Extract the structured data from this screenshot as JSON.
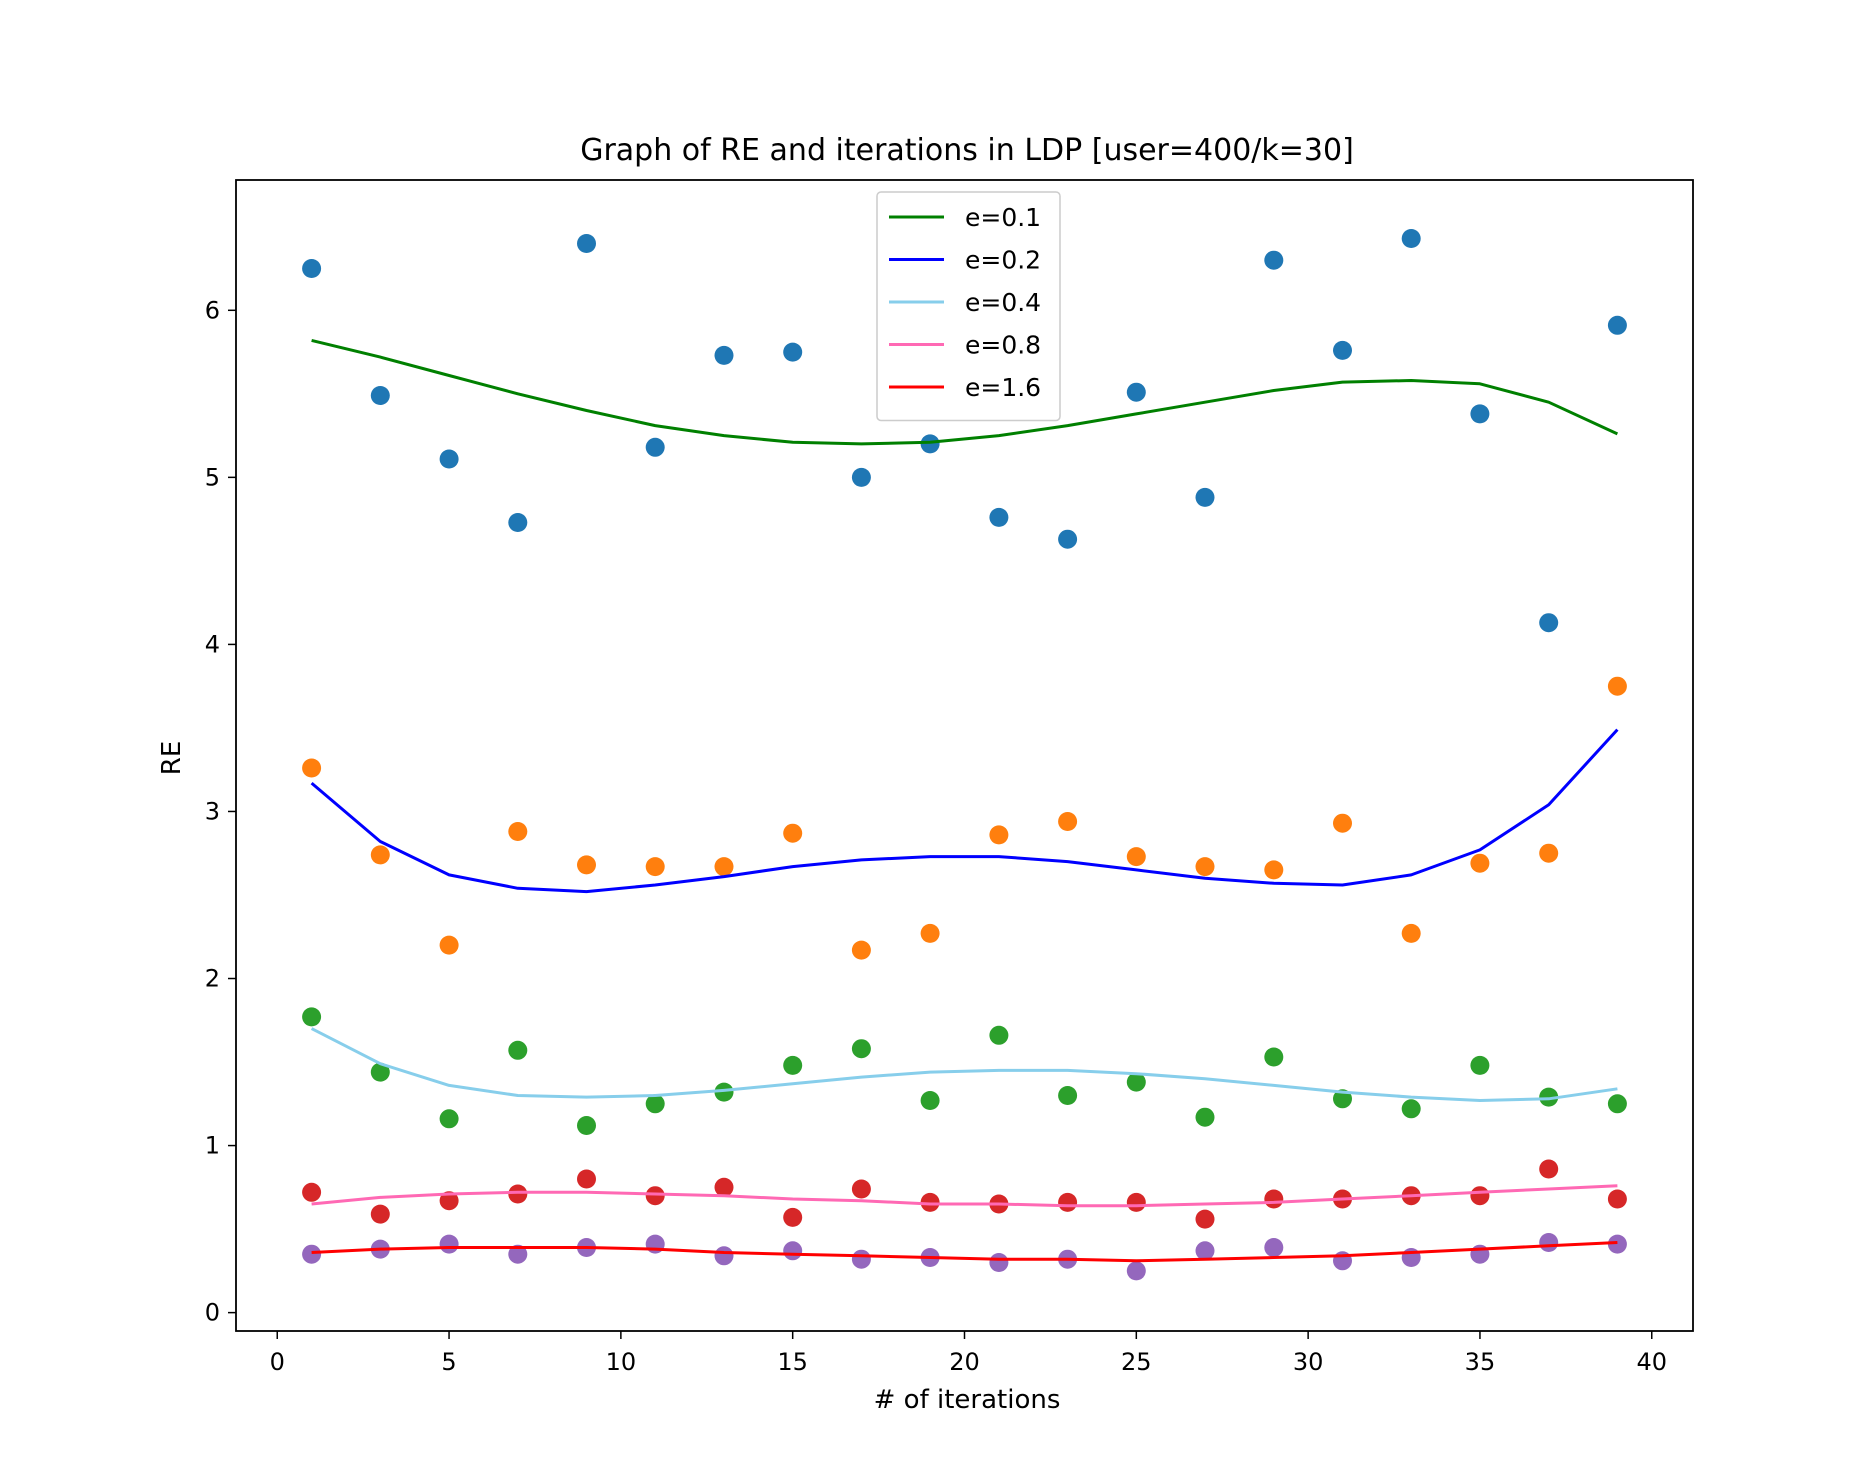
{
  "chart_data": {
    "type": "scatter",
    "title": "Graph of RE and iterations in LDP [user=400/k=30]",
    "xlabel": "# of iterations",
    "ylabel": "RE",
    "xlim": [
      -1.2,
      41.2
    ],
    "ylim": [
      -0.11,
      6.78
    ],
    "x_ticks": [
      0,
      5,
      10,
      15,
      20,
      25,
      30,
      35,
      40
    ],
    "y_ticks": [
      0,
      1,
      2,
      3,
      4,
      5,
      6
    ],
    "legend_position": "top-center",
    "x": [
      1,
      3,
      5,
      7,
      9,
      11,
      13,
      15,
      17,
      19,
      21,
      23,
      25,
      27,
      29,
      31,
      33,
      35,
      37,
      39
    ],
    "scatter_series": [
      {
        "color": "#1f77b4",
        "values": [
          6.25,
          5.49,
          5.11,
          4.73,
          6.4,
          5.18,
          5.73,
          5.75,
          5.0,
          5.2,
          4.76,
          4.63,
          5.51,
          4.88,
          6.3,
          5.76,
          6.43,
          5.38,
          4.13,
          5.91
        ]
      },
      {
        "color": "#ff7f0e",
        "values": [
          3.26,
          2.74,
          2.2,
          2.88,
          2.68,
          2.67,
          2.67,
          2.87,
          2.17,
          2.27,
          2.86,
          2.94,
          2.73,
          2.67,
          2.65,
          2.93,
          2.27,
          2.69,
          2.75,
          3.75
        ]
      },
      {
        "color": "#2ca02c",
        "values": [
          1.77,
          1.44,
          1.16,
          1.57,
          1.12,
          1.25,
          1.32,
          1.48,
          1.58,
          1.27,
          1.66,
          1.3,
          1.38,
          1.17,
          1.53,
          1.28,
          1.22,
          1.48,
          1.29,
          1.25
        ]
      },
      {
        "color": "#d62728",
        "values": [
          0.72,
          0.59,
          0.67,
          0.71,
          0.8,
          0.7,
          0.75,
          0.57,
          0.74,
          0.66,
          0.65,
          0.66,
          0.66,
          0.56,
          0.68,
          0.68,
          0.7,
          0.7,
          0.86,
          0.68
        ]
      },
      {
        "color": "#9467bd",
        "values": [
          0.35,
          0.38,
          0.41,
          0.35,
          0.39,
          0.41,
          0.34,
          0.37,
          0.32,
          0.33,
          0.3,
          0.32,
          0.25,
          0.37,
          0.39,
          0.31,
          0.33,
          0.35,
          0.42,
          0.41
        ]
      }
    ],
    "series": [
      {
        "name": "e=0.1",
        "color": "#008000",
        "values": [
          5.82,
          5.72,
          5.61,
          5.5,
          5.4,
          5.31,
          5.25,
          5.21,
          5.2,
          5.21,
          5.25,
          5.31,
          5.38,
          5.45,
          5.52,
          5.57,
          5.58,
          5.56,
          5.45,
          5.26
        ]
      },
      {
        "name": "e=0.2",
        "color": "#0000ff",
        "values": [
          3.17,
          2.82,
          2.62,
          2.54,
          2.52,
          2.56,
          2.61,
          2.67,
          2.71,
          2.73,
          2.73,
          2.7,
          2.65,
          2.6,
          2.57,
          2.56,
          2.62,
          2.77,
          3.04,
          3.49
        ]
      },
      {
        "name": "e=0.4",
        "color": "#87ceeb",
        "values": [
          1.7,
          1.49,
          1.36,
          1.3,
          1.29,
          1.3,
          1.33,
          1.37,
          1.41,
          1.44,
          1.45,
          1.45,
          1.43,
          1.4,
          1.36,
          1.32,
          1.29,
          1.27,
          1.28,
          1.34
        ]
      },
      {
        "name": "e=0.8",
        "color": "#ff69b4",
        "values": [
          0.65,
          0.69,
          0.71,
          0.72,
          0.72,
          0.71,
          0.7,
          0.68,
          0.67,
          0.65,
          0.65,
          0.64,
          0.64,
          0.65,
          0.66,
          0.68,
          0.7,
          0.72,
          0.74,
          0.76
        ]
      },
      {
        "name": "e=1.6",
        "color": "#ff0000",
        "values": [
          0.36,
          0.38,
          0.39,
          0.39,
          0.39,
          0.38,
          0.36,
          0.35,
          0.34,
          0.33,
          0.32,
          0.32,
          0.31,
          0.32,
          0.33,
          0.34,
          0.36,
          0.38,
          0.4,
          0.42
        ]
      }
    ]
  }
}
